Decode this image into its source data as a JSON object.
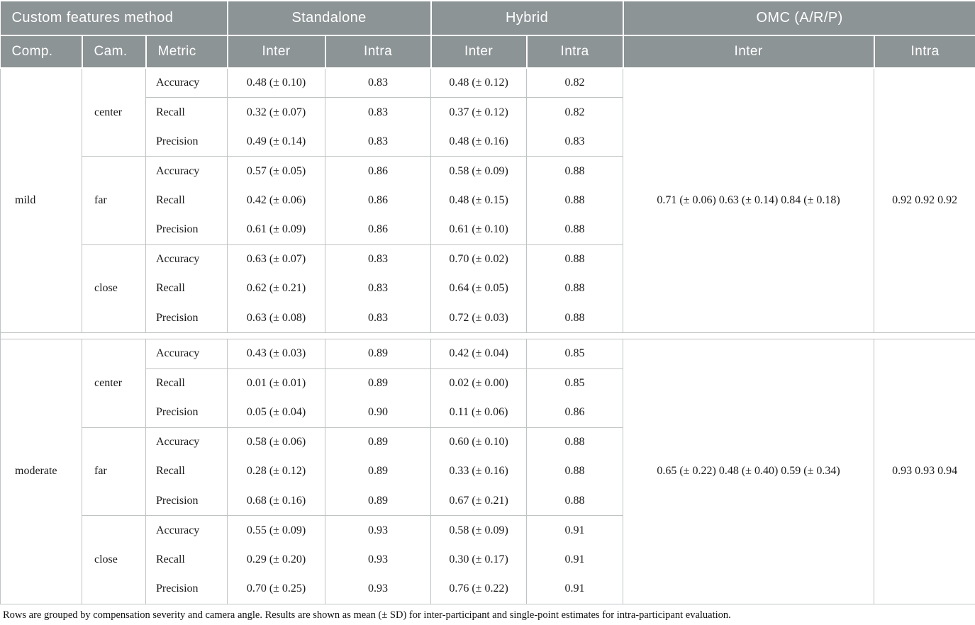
{
  "table": {
    "header": {
      "group_row": [
        {
          "label": "Custom features method",
          "span": 3
        },
        {
          "label": "Standalone",
          "span": 2
        },
        {
          "label": "Hybrid",
          "span": 2
        },
        {
          "label": "OMC (A/R/P)",
          "span": 2
        }
      ],
      "columns": [
        "Comp.",
        "Cam.",
        "Metric",
        "Inter",
        "Intra",
        "Inter",
        "Intra",
        "Inter",
        "Intra"
      ]
    },
    "groups": [
      {
        "comp": "mild",
        "omc_inter": "0.71 (± 0.06)  0.63 (± 0.14) 0.84 (± 0.18)",
        "omc_intra": "0.92 0.92 0.92",
        "cameras": [
          {
            "cam": "center",
            "rows": [
              {
                "metric": "Accuracy",
                "s_inter": "0.48 (± 0.10)",
                "s_intra": "0.83",
                "h_inter": "0.48 (± 0.12)",
                "h_intra": "0.82"
              },
              {
                "metric": "Recall",
                "s_inter": "0.32 (± 0.07)",
                "s_intra": "0.83",
                "h_inter": "0.37 (± 0.12)",
                "h_intra": "0.82"
              },
              {
                "metric": "Precision",
                "s_inter": "0.49 (± 0.14)",
                "s_intra": "0.83",
                "h_inter": "0.48 (± 0.16)",
                "h_intra": "0.83"
              }
            ]
          },
          {
            "cam": "far",
            "rows": [
              {
                "metric": "Accuracy",
                "s_inter": "0.57 (± 0.05)",
                "s_intra": "0.86",
                "h_inter": "0.58 (± 0.09)",
                "h_intra": "0.88"
              },
              {
                "metric": "Recall",
                "s_inter": "0.42 (± 0.06)",
                "s_intra": "0.86",
                "h_inter": "0.48 (± 0.15)",
                "h_intra": "0.88"
              },
              {
                "metric": "Precision",
                "s_inter": "0.61 (± 0.09)",
                "s_intra": "0.86",
                "h_inter": "0.61 (± 0.10)",
                "h_intra": "0.88"
              }
            ]
          },
          {
            "cam": "close",
            "rows": [
              {
                "metric": "Accuracy",
                "s_inter": "0.63 (± 0.07)",
                "s_intra": "0.83",
                "h_inter": "0.70 (± 0.02)",
                "h_intra": "0.88"
              },
              {
                "metric": "Recall",
                "s_inter": "0.62 (± 0.21)",
                "s_intra": "0.83",
                "h_inter": "0.64 (± 0.05)",
                "h_intra": "0.88"
              },
              {
                "metric": "Precision",
                "s_inter": "0.63 (± 0.08)",
                "s_intra": "0.83",
                "h_inter": "0.72 (± 0.03)",
                "h_intra": "0.88"
              }
            ]
          }
        ]
      },
      {
        "comp": "moderate",
        "omc_inter": "0.65 (± 0.22) 0.48 (± 0.40) 0.59 (± 0.34)",
        "omc_intra": "0.93 0.93 0.94",
        "cameras": [
          {
            "cam": "center",
            "rows": [
              {
                "metric": "Accuracy",
                "s_inter": "0.43 (± 0.03)",
                "s_intra": "0.89",
                "h_inter": "0.42 (± 0.04)",
                "h_intra": "0.85"
              },
              {
                "metric": "Recall",
                "s_inter": "0.01 (± 0.01)",
                "s_intra": "0.89",
                "h_inter": "0.02 (± 0.00)",
                "h_intra": "0.85"
              },
              {
                "metric": "Precision",
                "s_inter": "0.05 (± 0.04)",
                "s_intra": "0.90",
                "h_inter": "0.11 (± 0.06)",
                "h_intra": "0.86"
              }
            ]
          },
          {
            "cam": "far",
            "rows": [
              {
                "metric": "Accuracy",
                "s_inter": "0.58 (± 0.06)",
                "s_intra": "0.89",
                "h_inter": "0.60 (± 0.10)",
                "h_intra": "0.88"
              },
              {
                "metric": "Recall",
                "s_inter": "0.28 (± 0.12)",
                "s_intra": "0.89",
                "h_inter": "0.33 (± 0.16)",
                "h_intra": "0.88"
              },
              {
                "metric": "Precision",
                "s_inter": "0.68 (± 0.16)",
                "s_intra": "0.89",
                "h_inter": "0.67 (± 0.21)",
                "h_intra": "0.88"
              }
            ]
          },
          {
            "cam": "close",
            "rows": [
              {
                "metric": "Accuracy",
                "s_inter": "0.55 (± 0.09)",
                "s_intra": "0.93",
                "h_inter": "0.58 (± 0.09)",
                "h_intra": "0.91"
              },
              {
                "metric": "Recall",
                "s_inter": "0.29 (± 0.20)",
                "s_intra": "0.93",
                "h_inter": "0.30 (± 0.17)",
                "h_intra": "0.91"
              },
              {
                "metric": "Precision",
                "s_inter": "0.70 (± 0.25)",
                "s_intra": "0.93",
                "h_inter": "0.76 (± 0.22)",
                "h_intra": "0.91"
              }
            ]
          }
        ]
      }
    ],
    "footnote": "Rows are grouped by compensation severity and camera angle. Results are shown as mean (± SD) for inter-participant and single-point estimates for intra-participant evaluation.",
    "colors": {
      "header_bg": "#8d9496",
      "header_text": "#ffffff",
      "grid_line": "#bfc3c4",
      "body_text": "#1a1a1a"
    }
  }
}
